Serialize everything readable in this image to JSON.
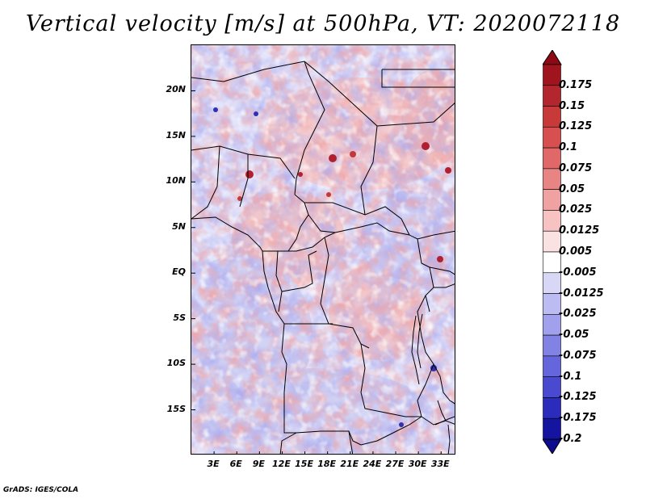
{
  "title": "Vertical velocity [m/s] at 500hPa, VT: 2020072118",
  "credit": "GrADS: IGES/COLA",
  "map": {
    "lat_labels": [
      "20N",
      "15N",
      "10N",
      "5N",
      "EQ",
      "5S",
      "10S",
      "15S"
    ],
    "lat_values": [
      20,
      15,
      10,
      5,
      0,
      -5,
      -10,
      -15
    ],
    "lon_labels": [
      "3E",
      "6E",
      "9E",
      "12E",
      "15E",
      "18E",
      "21E",
      "24E",
      "27E",
      "30E",
      "33E"
    ],
    "lon_values": [
      3,
      6,
      9,
      12,
      15,
      18,
      21,
      24,
      27,
      30,
      33
    ],
    "lon_range": [
      0,
      35
    ],
    "lat_range": [
      -20,
      25
    ]
  },
  "legend": {
    "labels": [
      "0.175",
      "0.15",
      "0.125",
      "0.1",
      "0.075",
      "0.05",
      "0.025",
      "0.0125",
      "0.005",
      "-0.005",
      "-0.0125",
      "-0.025",
      "-0.05",
      "-0.075",
      "-0.1",
      "-0.125",
      "-0.175",
      "-0.2"
    ],
    "colors": [
      "#a0141e",
      "#b4262e",
      "#c83a3a",
      "#d84f4f",
      "#e06868",
      "#e88484",
      "#f0a2a2",
      "#f6c2c2",
      "#fbe2e2",
      "#ffffff",
      "#d8d8f6",
      "#bcbcf2",
      "#a0a0ec",
      "#8282e4",
      "#6666dc",
      "#4a4ad0",
      "#2c2cbc",
      "#1414a0"
    ],
    "top_arrow_color": "#8c0a14",
    "bottom_arrow_color": "#0c0c8c"
  }
}
